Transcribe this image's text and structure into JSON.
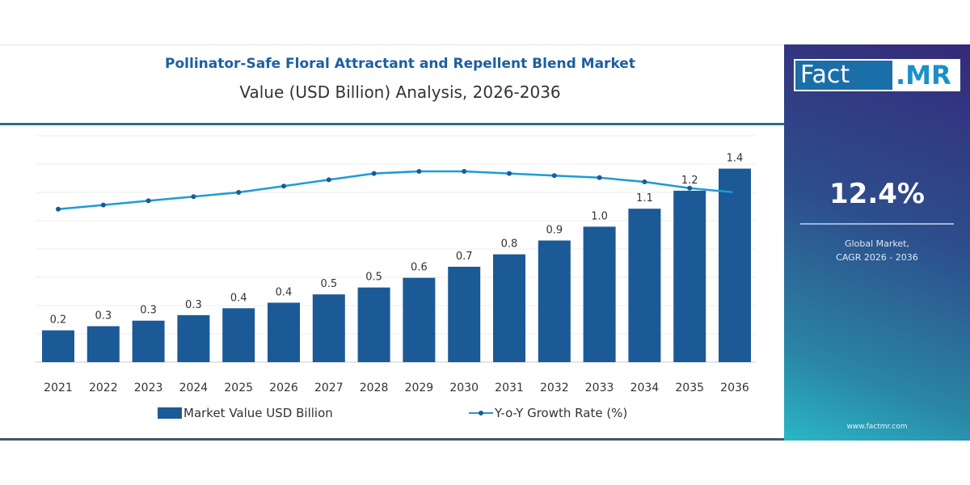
{
  "header": {
    "title": "Pollinator-Safe Floral Attractant and Repellent Blend Market",
    "subtitle": "Value (USD Billion) Analysis, 2026-2036"
  },
  "sidebar": {
    "logo_left": "Fact",
    "logo_right": ".MR",
    "cagr": "12.4%",
    "cagr_label_line1": "Global Market,",
    "cagr_label_line2": "CAGR 2026 - 2036",
    "url": "www.factmr.com"
  },
  "colors": {
    "bar": "#1b5a96",
    "line": "#1d9bd6",
    "marker": "#1b5a96",
    "title": "#1d5fa0"
  },
  "chart_data": {
    "type": "bar+line",
    "title": "Pollinator-Safe Floral Attractant and Repellent Blend Market",
    "subtitle": "Value (USD Billion) Analysis, 2026-2036",
    "categories": [
      "2021",
      "2022",
      "2023",
      "2024",
      "2025",
      "2026",
      "2027",
      "2028",
      "2029",
      "2030",
      "2031",
      "2032",
      "2033",
      "2034",
      "2035",
      "2036"
    ],
    "grid": true,
    "legend_position": "bottom",
    "series": [
      {
        "name": "Market Value USD Billion",
        "type": "bar",
        "values": [
          0.23,
          0.26,
          0.3,
          0.34,
          0.39,
          0.43,
          0.49,
          0.54,
          0.61,
          0.69,
          0.78,
          0.88,
          0.98,
          1.11,
          1.24,
          1.4
        ],
        "labels": [
          "0.2",
          "0.3",
          "0.3",
          "0.3",
          "0.4",
          "0.4",
          "0.5",
          "0.5",
          "0.6",
          "0.7",
          "0.8",
          "0.9",
          "1.0",
          "1.1",
          "1.2",
          "1.4"
        ]
      },
      {
        "name": "Y-o-Y Growth Rate (%)",
        "type": "line",
        "values": [
          11.2,
          11.4,
          11.6,
          11.8,
          12.0,
          12.3,
          12.6,
          12.9,
          13.0,
          13.0,
          12.9,
          12.8,
          12.7,
          12.5,
          12.2,
          12.0
        ]
      }
    ]
  }
}
